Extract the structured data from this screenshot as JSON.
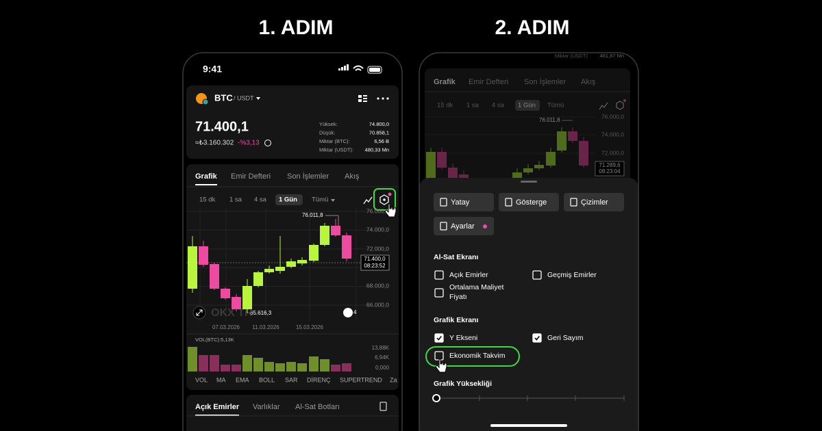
{
  "headings": [
    "1. ADIM",
    "2. ADIM"
  ],
  "phone1": {
    "status_time": "9:41",
    "pair": {
      "base": "BTC",
      "quote": "/ USDT"
    },
    "price": "71.400,1",
    "fiat_value": "≈₺3.160.302",
    "change": "-%3,13",
    "stats": [
      {
        "label": "Yüksek:",
        "value": "74.800,0"
      },
      {
        "label": "Düşük:",
        "value": "70.858,1"
      },
      {
        "label": "Miktar (BTC):",
        "value": "6,56 B"
      },
      {
        "label": "Miktar (USDT):",
        "value": "480,33 Mn"
      }
    ],
    "tabs": [
      "Grafik",
      "Emir Defteri",
      "Son İşlemler",
      "Akış"
    ],
    "timeframes": [
      "15 dk",
      "1 sa",
      "4 sa",
      "1 Gün",
      "Tümü"
    ],
    "chart": {
      "y_labels": [
        "76.000,0",
        "74.000,0",
        "72.000,0",
        "68.000,0",
        "66.000,0"
      ],
      "high_label": "76.011,8",
      "low_label": "65.616,3",
      "last_price": "71.400,0",
      "countdown": "08:23:52",
      "dates": [
        "07.03.2026",
        "11.03.2026",
        "15.03.2026"
      ],
      "watermark": "OKX TR",
      "layers": "4"
    },
    "volume": {
      "label": "VOL(BTC):5,13K",
      "ticks": [
        "13,88K",
        "6,94K",
        "0,000"
      ]
    },
    "indicators": [
      "VOL",
      "MA",
      "EMA",
      "BOLL",
      "SAR",
      "DİRENÇ",
      "SUPERTREND",
      "Za"
    ],
    "bottom_tabs": [
      "Açık Emirler",
      "Varlıklar",
      "Al-Sat Botları"
    ]
  },
  "phone2": {
    "top_label": "Miktar (USDT)",
    "top_value": "481,87 Mn",
    "tabs": [
      "Grafik",
      "Emir Defteri",
      "Son İşlemler",
      "Akış"
    ],
    "timeframes": [
      "15 dk",
      "1 sa",
      "4 sa",
      "1 Gün",
      "Tümü"
    ],
    "chart": {
      "y_labels": [
        "76.000,0",
        "74.000,0",
        "72.000,0"
      ],
      "high_label": "76.011,8",
      "last_price": "71.289,6",
      "countdown": "08:23:04"
    },
    "buttons": [
      "Yatay",
      "Gösterge",
      "Çizimler",
      "Ayarlar"
    ],
    "sections": [
      {
        "title": "Al-Sat Ekranı",
        "options": [
          {
            "label": "Açık Emirler",
            "checked": false
          },
          {
            "label": "Geçmiş Emirler",
            "checked": false
          },
          {
            "label": "Ortalama Maliyet Fiyatı",
            "checked": false
          }
        ]
      },
      {
        "title": "Grafik Ekranı",
        "options": [
          {
            "label": "Y Ekseni",
            "checked": true
          },
          {
            "label": "Geri Sayım",
            "checked": true
          },
          {
            "label": "Ekonomik Takvim",
            "checked": false
          }
        ]
      }
    ],
    "height_label": "Grafik Yüksekliği"
  }
}
